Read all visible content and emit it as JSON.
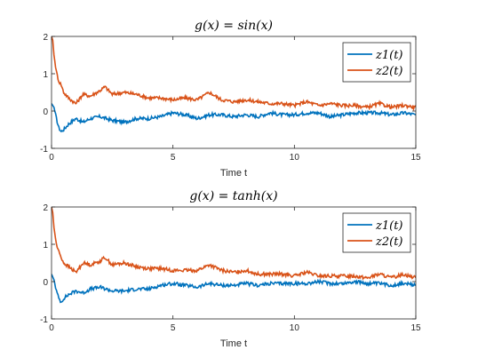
{
  "chart_data": [
    {
      "type": "line",
      "title": "g(x) = sin(x)",
      "xlabel": "Time t",
      "ylabel": "",
      "xlim": [
        0,
        15
      ],
      "ylim": [
        -1,
        2
      ],
      "xticks": [
        "0",
        "5",
        "10",
        "15"
      ],
      "yticks": [
        "-1",
        "0",
        "1",
        "2"
      ],
      "grid": false,
      "legend_position": "top-right",
      "series": [
        {
          "name": "z1(t)",
          "color": "#0072BD",
          "x": [
            0,
            0.1,
            0.2,
            0.3,
            0.4,
            0.5,
            0.7,
            1.0,
            1.3,
            1.6,
            2.0,
            2.5,
            3.0,
            3.5,
            4.0,
            4.5,
            5.0,
            5.5,
            6.0,
            6.5,
            7.0,
            7.5,
            8.0,
            8.5,
            9.0,
            9.5,
            10.0,
            10.5,
            11.0,
            11.5,
            12.0,
            12.5,
            13.0,
            13.5,
            14.0,
            14.5,
            15.0
          ],
          "values": [
            0.2,
            0.1,
            -0.2,
            -0.45,
            -0.55,
            -0.5,
            -0.35,
            -0.2,
            -0.3,
            -0.2,
            -0.15,
            -0.25,
            -0.3,
            -0.2,
            -0.2,
            -0.15,
            -0.05,
            -0.1,
            -0.2,
            -0.1,
            -0.1,
            -0.15,
            -0.1,
            -0.15,
            -0.05,
            -0.1,
            -0.1,
            -0.05,
            -0.05,
            -0.15,
            -0.1,
            -0.05,
            -0.05,
            -0.05,
            -0.1,
            -0.05,
            -0.1
          ]
        },
        {
          "name": "z2(t)",
          "color": "#D95319",
          "x": [
            0,
            0.05,
            0.1,
            0.2,
            0.3,
            0.4,
            0.5,
            0.7,
            1.0,
            1.3,
            1.6,
            2.0,
            2.2,
            2.5,
            3.0,
            3.5,
            4.0,
            4.5,
            5.0,
            5.5,
            6.0,
            6.5,
            7.0,
            7.5,
            8.0,
            8.5,
            9.0,
            9.5,
            10.0,
            10.5,
            11.0,
            11.5,
            12.0,
            12.5,
            13.0,
            13.5,
            14.0,
            14.5,
            15.0
          ],
          "values": [
            2.0,
            1.9,
            1.5,
            1.05,
            0.8,
            0.7,
            0.5,
            0.35,
            0.2,
            0.45,
            0.4,
            0.55,
            0.65,
            0.45,
            0.5,
            0.45,
            0.35,
            0.35,
            0.3,
            0.35,
            0.3,
            0.5,
            0.3,
            0.25,
            0.3,
            0.25,
            0.2,
            0.2,
            0.15,
            0.25,
            0.15,
            0.2,
            0.15,
            0.15,
            0.1,
            0.2,
            0.1,
            0.15,
            0.1
          ]
        }
      ]
    },
    {
      "type": "line",
      "title": "g(x) = tanh(x)",
      "xlabel": "Time t",
      "ylabel": "",
      "xlim": [
        0,
        15
      ],
      "ylim": [
        -1,
        2
      ],
      "xticks": [
        "0",
        "5",
        "10",
        "15"
      ],
      "yticks": [
        "-1",
        "0",
        "1",
        "2"
      ],
      "grid": false,
      "legend_position": "top-right",
      "series": [
        {
          "name": "z1(t)",
          "color": "#0072BD",
          "x": [
            0,
            0.1,
            0.2,
            0.3,
            0.4,
            0.5,
            0.7,
            1.0,
            1.3,
            1.6,
            2.0,
            2.5,
            3.0,
            3.5,
            4.0,
            4.5,
            5.0,
            5.5,
            6.0,
            6.5,
            7.0,
            7.5,
            8.0,
            8.5,
            9.0,
            9.5,
            10.0,
            10.5,
            11.0,
            11.5,
            12.0,
            12.5,
            13.0,
            13.5,
            14.0,
            14.5,
            15.0
          ],
          "values": [
            0.2,
            0.05,
            -0.25,
            -0.45,
            -0.55,
            -0.45,
            -0.35,
            -0.25,
            -0.3,
            -0.2,
            -0.15,
            -0.25,
            -0.25,
            -0.2,
            -0.2,
            -0.1,
            -0.05,
            -0.1,
            -0.15,
            -0.05,
            -0.1,
            -0.1,
            -0.05,
            -0.1,
            -0.05,
            -0.05,
            -0.05,
            -0.05,
            0.0,
            -0.05,
            -0.05,
            0.0,
            -0.05,
            -0.05,
            -0.1,
            -0.05,
            -0.1
          ]
        },
        {
          "name": "z2(t)",
          "color": "#D95319",
          "x": [
            0,
            0.05,
            0.1,
            0.2,
            0.3,
            0.4,
            0.5,
            0.7,
            1.0,
            1.3,
            1.6,
            2.0,
            2.2,
            2.5,
            3.0,
            3.5,
            4.0,
            4.5,
            5.0,
            5.5,
            6.0,
            6.5,
            7.0,
            7.5,
            8.0,
            8.5,
            9.0,
            9.5,
            10.0,
            10.5,
            11.0,
            11.5,
            12.0,
            12.5,
            13.0,
            13.5,
            14.0,
            14.5,
            15.0
          ],
          "values": [
            2.0,
            1.85,
            1.45,
            1.0,
            0.8,
            0.65,
            0.5,
            0.4,
            0.25,
            0.5,
            0.45,
            0.55,
            0.65,
            0.45,
            0.5,
            0.4,
            0.35,
            0.35,
            0.3,
            0.3,
            0.3,
            0.45,
            0.3,
            0.25,
            0.3,
            0.2,
            0.2,
            0.2,
            0.15,
            0.25,
            0.15,
            0.15,
            0.15,
            0.15,
            0.1,
            0.2,
            0.1,
            0.2,
            0.1
          ]
        }
      ]
    }
  ]
}
